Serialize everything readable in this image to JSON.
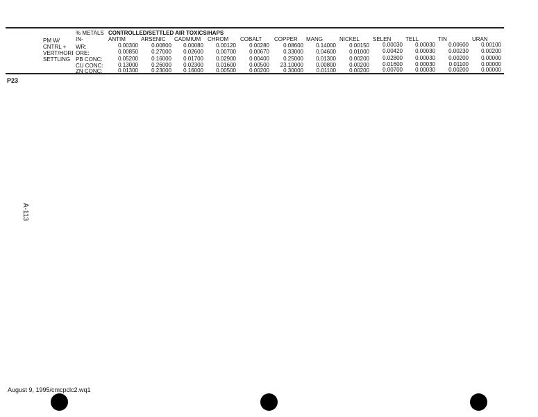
{
  "table": {
    "title": "CONTROLLED/SETTLED AIR TOXICS/HAPS",
    "stub_col1": [
      "PM W/",
      "CNTRL +",
      "VERT/HORI",
      "SETTLING"
    ],
    "stub_col2_header": [
      "% METALS",
      "IN-"
    ],
    "columns": [
      "ANTIM",
      "ARSENIC",
      "CADMIUM",
      "CHROM",
      "COBALT",
      "COPPER",
      "MANG",
      "NICKEL",
      "SELEN",
      "TELL",
      "TIN",
      "URAN"
    ],
    "rows": [
      {
        "label": "WR:",
        "values": [
          "0.00300",
          "0.00800",
          "0.00080",
          "0.00120",
          "0.00280",
          "0.08600",
          "0.14000",
          "0.00150",
          "0.00030",
          "0.00030",
          "0.00600",
          "0.00100"
        ]
      },
      {
        "label": "ORE:",
        "values": [
          "0.00850",
          "0.27000",
          "0.02600",
          "0.00700",
          "0.00670",
          "0.33000",
          "0.04600",
          "0.01000",
          "0.00420",
          "0.00030",
          "0.00230",
          "0.00200"
        ]
      },
      {
        "label": "PB CONC:",
        "values": [
          "0.05200",
          "0.16000",
          "0.01700",
          "0.02900",
          "0.00400",
          "0.25000",
          "0.01300",
          "0.00200",
          "0.02800",
          "0.00030",
          "0.00200",
          "0.00000"
        ]
      },
      {
        "label": "CU CONC:",
        "values": [
          "0.13000",
          "0.26000",
          "0.02300",
          "0.01600",
          "0.00500",
          "23.10000",
          "0.00800",
          "0.00200",
          "0.01600",
          "0.00030",
          "0.01100",
          "0.00000"
        ]
      },
      {
        "label": "ZN CONC:",
        "values": [
          "0.01300",
          "0.23000",
          "0.16000",
          "0.00500",
          "0.00200",
          "0.30000",
          "0.01100",
          "0.00200",
          "0.00700",
          "0.00030",
          "0.00200",
          "0.00000"
        ]
      }
    ]
  },
  "page_label": "P23",
  "side_page_number": "A-113",
  "footer": "August 9, 1995/cmcpclc2.wq1"
}
